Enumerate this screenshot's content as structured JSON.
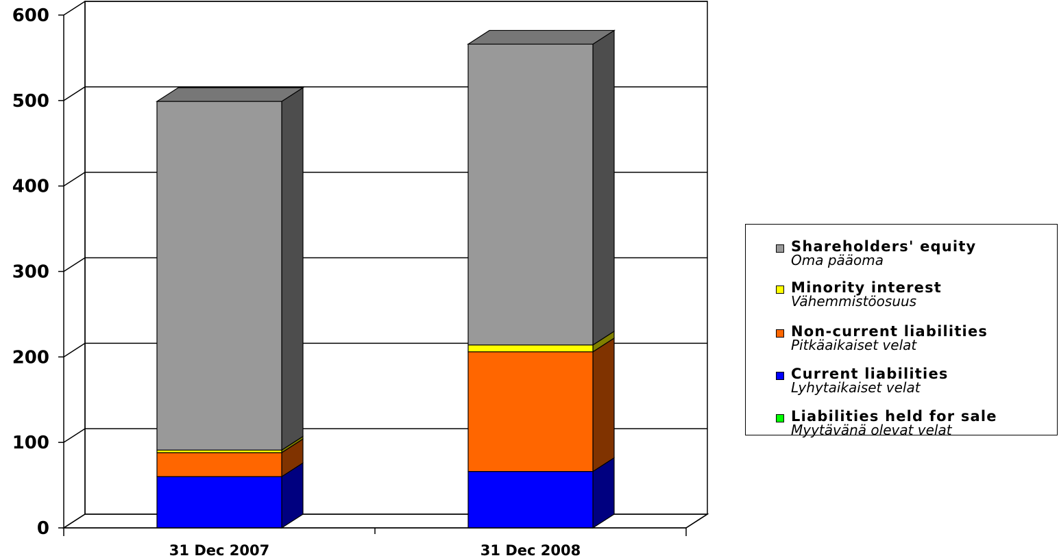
{
  "chart_data": {
    "type": "bar",
    "stacked": true,
    "three_d": true,
    "categories": [
      "31 Dec 2007",
      "31 Dec 2008"
    ],
    "ylim": [
      0,
      600
    ],
    "yticks": [
      "0",
      "100",
      "200",
      "300",
      "400",
      "500",
      "600"
    ],
    "grid": true,
    "legend_position": "right",
    "series": [
      {
        "name": "Liabilities held for sale",
        "name_fi": "Myytävänä olevat velat",
        "color": "#00ff00",
        "values": [
          0,
          0
        ]
      },
      {
        "name": "Current liabilities",
        "name_fi": "Lyhytaikaiset velat",
        "color": "#0000ff",
        "values": [
          60,
          66
        ]
      },
      {
        "name": "Non-current liabilities",
        "name_fi": "Pitkäaikaiset velat",
        "color": "#ff6600",
        "values": [
          28,
          140
        ]
      },
      {
        "name": "Minority interest",
        "name_fi": "Vähemmistöosuus",
        "color": "#ffff00",
        "values": [
          3,
          8
        ]
      },
      {
        "name": "Shareholders' equity",
        "name_fi": "Oma pääoma",
        "color": "#999999",
        "values": [
          408,
          352
        ]
      }
    ],
    "legend_order": [
      4,
      3,
      2,
      1,
      0
    ]
  }
}
